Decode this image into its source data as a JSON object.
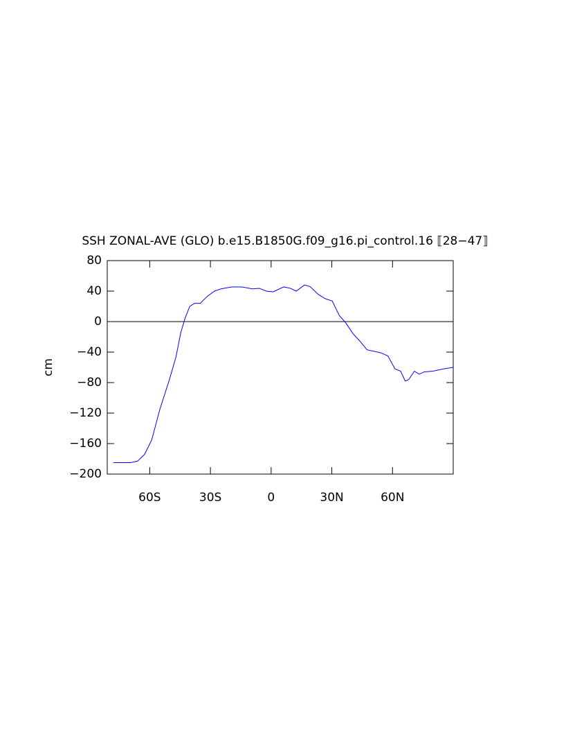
{
  "chart_data": {
    "type": "line",
    "title": "SSH ZONAL-AVE (GLO) b.e15.B1850G.f09_g16.pi_control.16 ⟦28−47⟧",
    "ylabel": "cm",
    "xlim": [
      -81,
      90
    ],
    "ylim": [
      -200,
      80
    ],
    "xticks": [
      {
        "value": -60,
        "label": "60S"
      },
      {
        "value": -30,
        "label": "30S"
      },
      0,
      {
        "value": 30,
        "label": "30N"
      },
      {
        "value": 60,
        "label": "60N"
      }
    ],
    "yticks": [
      {
        "value": -200,
        "label": "−200"
      },
      {
        "value": -160,
        "label": "−160"
      },
      {
        "value": -120,
        "label": "−120"
      },
      {
        "value": -80,
        "label": "−80"
      },
      {
        "value": -40,
        "label": "−40"
      },
      0,
      40,
      80
    ],
    "hline": 0,
    "series": [
      {
        "color": "#0000ff",
        "x": [
          -78,
          -76.3,
          -72.9,
          -69.4,
          -66,
          -62.5,
          -59,
          -55,
          -50.5,
          -47,
          -44.7,
          -42.6,
          -40.2,
          -37.8,
          -35,
          -31.6,
          -28,
          -24.7,
          -19.6,
          -14.4,
          -9.3,
          -5.8,
          -2.4,
          1,
          6.2,
          9.6,
          12.4,
          16.5,
          19.2,
          23.4,
          26.8,
          30.2,
          33.7,
          37,
          40.5,
          44,
          47.4,
          50.9,
          54.3,
          57.7,
          61.2,
          64,
          66.3,
          68,
          70.8,
          73.2,
          75.6,
          80,
          85.2,
          90
        ],
        "values": [
          -185,
          -185,
          -185,
          -185,
          -183,
          -174,
          -155,
          -115,
          -78,
          -46,
          -15,
          4,
          20,
          24,
          24,
          33,
          40,
          43,
          45.5,
          45.5,
          43,
          43.6,
          40,
          39,
          45.5,
          43.6,
          40,
          48,
          46,
          35.5,
          30,
          27,
          8,
          -2,
          -16,
          -26,
          -37,
          -39,
          -41,
          -45,
          -62,
          -65,
          -78,
          -76,
          -65,
          -69,
          -66,
          -65,
          -62,
          -60
        ]
      }
    ]
  }
}
